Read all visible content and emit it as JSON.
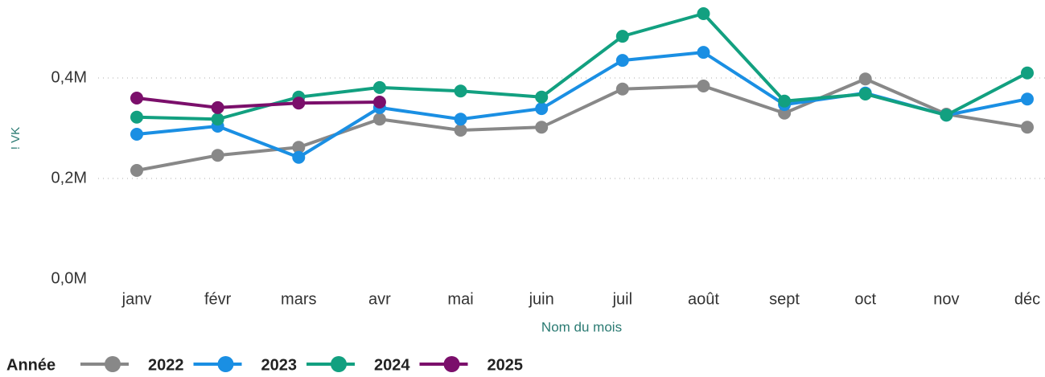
{
  "chart_data": {
    "type": "line",
    "y_axis_label": "! VK",
    "x_axis_label": "Nom du mois",
    "legend_title": "Année",
    "legend_position": "bottom-left",
    "grid": true,
    "categories": [
      "janv",
      "févr",
      "mars",
      "avr",
      "mai",
      "juin",
      "juil",
      "août",
      "sept",
      "oct",
      "nov",
      "déc"
    ],
    "ylim": [
      0,
      0.55
    ],
    "yticks": [
      {
        "value": 0,
        "label": "0,0M"
      },
      {
        "value": 0.2,
        "label": "0,2M"
      },
      {
        "value": 0.4,
        "label": "0,4M"
      }
    ],
    "series": [
      {
        "name": "2022",
        "color": "#888888",
        "values": [
          0.216,
          0.246,
          0.262,
          0.318,
          0.296,
          0.302,
          0.378,
          0.384,
          0.33,
          0.398,
          0.328,
          0.302
        ]
      },
      {
        "name": "2023",
        "color": "#1a8fe3",
        "values": [
          0.288,
          0.304,
          0.242,
          0.341,
          0.318,
          0.339,
          0.435,
          0.451,
          0.347,
          0.37,
          0.326,
          0.358
        ]
      },
      {
        "name": "2024",
        "color": "#12a080",
        "values": [
          0.322,
          0.318,
          0.362,
          0.381,
          0.374,
          0.362,
          0.483,
          0.528,
          0.354,
          0.368,
          0.326,
          0.41
        ]
      },
      {
        "name": "2025",
        "color": "#7b0f6b",
        "values": [
          0.36,
          0.341,
          0.35,
          0.352,
          null,
          null,
          null,
          null,
          null,
          null,
          null,
          null
        ]
      }
    ]
  }
}
